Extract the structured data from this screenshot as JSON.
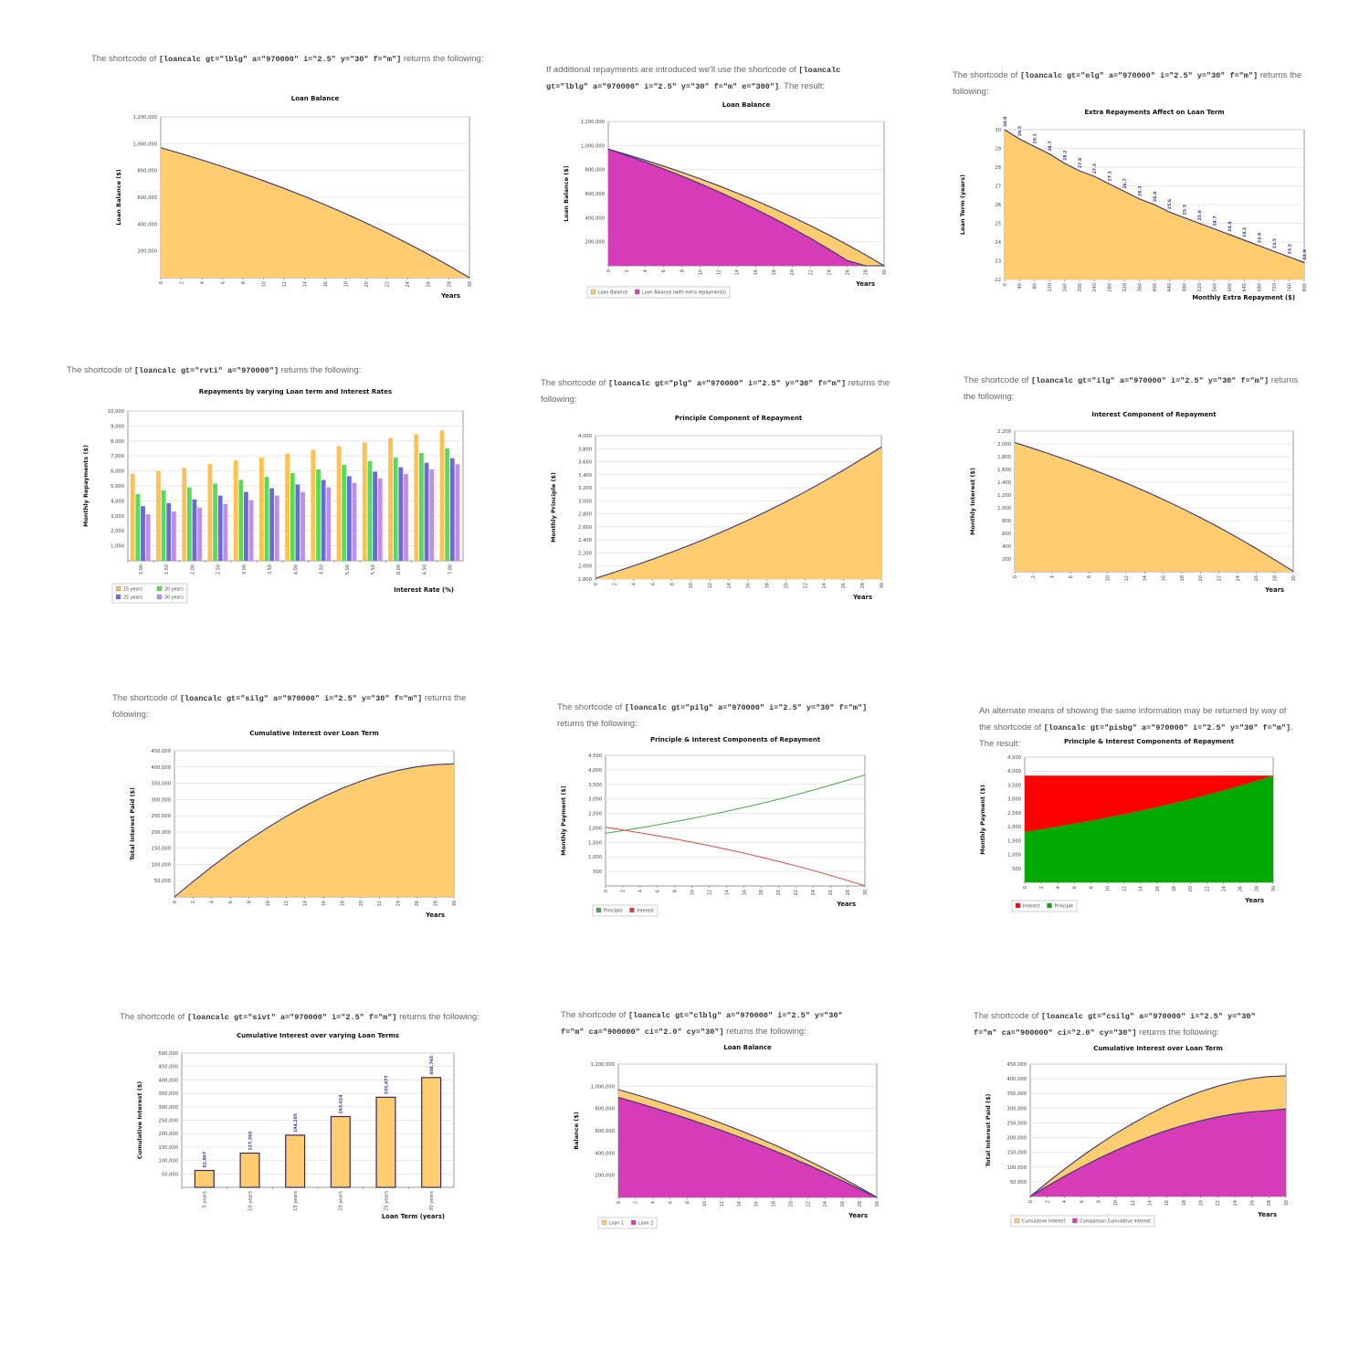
{
  "panels": [
    {
      "before": "The shortcode of ",
      "code": "[loancalc gt=\"lblg\" a=\"970000\" i=\"2.5\" y=\"30\" f=\"m\"]",
      "after": " returns the following:"
    },
    {
      "before": "If additional repayments are introduced we'll use the shortcode of ",
      "code": "[loancalc gt=\"lblg\" a=\"970000\" i=\"2.5\" y=\"30\" f=\"m\" e=\"300\"]",
      "after": ". The result:"
    },
    {
      "before": "The shortcode of ",
      "code": "[loancalc gt=\"elg\" a=\"970000\" i=\"2.5\" y=\"30\" f=\"m\"]",
      "after": " returns the following:"
    },
    {
      "before": "The shortcode of ",
      "code": "[loancalc gt=\"rvti\" a=\"970000\"]",
      "after": " returns the following:"
    },
    {
      "before": "The shortcode of ",
      "code": "[loancalc gt=\"plg\" a=\"970000\" i=\"2.5\" y=\"30\" f=\"m\"]",
      "after": " returns the following:"
    },
    {
      "before": "The shortcode of ",
      "code": "[loancalc gt=\"ilg\" a=\"970000\" i=\"2.5\" y=\"30\" f=\"m\"]",
      "after": " returns the following:"
    },
    {
      "before": "The shortcode of ",
      "code": "[loancalc gt=\"silg\" a=\"970000\" i=\"2.5\" y=\"30\" f=\"m\"]",
      "after": " returns the following:"
    },
    {
      "before": "The shortcode of ",
      "code": "[loancalc gt=\"pilg\" a=\"970000\" i=\"2.5\" y=\"30\" f=\"m\"]",
      "after": " returns the following:"
    },
    {
      "before": "An alternate means of showing the same information may be returned by way of the shortcode of ",
      "code": "[loancalc gt=\"pisbg\" a=\"970000\" i=\"2.5\" y=\"30\" f=\"m\"]",
      "after": ". The result:"
    },
    {
      "before": "The shortcode of ",
      "code": "[loancalc gt=\"sivt\" a=\"970000\" i=\"2.5\" f=\"m\"]",
      "after": " returns the following:"
    },
    {
      "before": "The shortcode of ",
      "code": "[loancalc gt=\"clblg\" a=\"970000\" i=\"2.5\" y=\"30\" f=\"m\" ca=\"900000\" ci=\"2.0\" cy=\"30\"]",
      "after": " returns the following:"
    },
    {
      "before": "The shortcode of ",
      "code": "[loancalc gt=\"csilg\" a=\"970000\" i=\"2.5\" y=\"30\" f=\"m\" ca=\"900000\" ci=\"2.0\" cy=\"30\"]",
      "after": " returns the following:"
    }
  ],
  "colors": {
    "orange": "#FFCC70",
    "magenta": "#D63CB8",
    "line": "#333377",
    "green": "#00AA00",
    "red": "#FF0000",
    "bar15": "#FFC04D",
    "bar20": "#55DD55",
    "bar25": "#6A6AD8",
    "bar30": "#C08CEE",
    "lgreen": "#44AA44",
    "lred": "#DD4444"
  },
  "chart_data": [
    {
      "type": "area",
      "title": "Loan Balance",
      "xlabel": "Years",
      "ylabel": "Loan Balance ($)",
      "ylim": [
        0,
        1200000
      ],
      "yticks": [
        200000,
        400000,
        600000,
        800000,
        1000000,
        1200000
      ],
      "x": [
        0,
        2,
        4,
        6,
        8,
        10,
        12,
        14,
        16,
        18,
        20,
        22,
        24,
        26,
        28,
        30
      ],
      "series": [
        {
          "color": "#FFCC70",
          "values": [
            970000,
            925454,
            878629,
            829413,
            777666,
            723266,
            666075,
            605970,
            542812,
            476384,
            406556,
            333153,
            255985,
            174894,
            89620,
            0
          ]
        }
      ]
    },
    {
      "type": "area",
      "title": "Loan Balance",
      "xlabel": "Years",
      "ylabel": "Loan Balance ($)",
      "ylim": [
        0,
        1200000
      ],
      "yticks": [
        200000,
        400000,
        600000,
        800000,
        1000000,
        1200000
      ],
      "x": [
        0,
        2,
        4,
        6,
        8,
        10,
        12,
        14,
        16,
        18,
        20,
        22,
        24,
        26,
        28,
        30
      ],
      "series": [
        {
          "color": "#FFCC70",
          "values": [
            970000,
            925454,
            878629,
            829413,
            777666,
            723266,
            666075,
            605970,
            542812,
            476384,
            406556,
            333153,
            255985,
            174894,
            89620,
            0
          ]
        },
        {
          "color": "#D63CB8",
          "values": [
            970000,
            918078,
            863501,
            806135,
            745820,
            682413,
            615752,
            545696,
            472081,
            394654,
            313264,
            227708,
            137762,
            43245,
            0,
            0
          ]
        }
      ],
      "legend": [
        {
          "label": "Loan Balance",
          "color": "#FFCC70"
        },
        {
          "label": "Loan Balance (with extra repayments)",
          "color": "#D63CB8"
        }
      ]
    },
    {
      "type": "area",
      "title": "Extra Repayments Affect on Loan Term",
      "xlabel": "Monthly Extra Repayment ($)",
      "ylabel": "Loan Term (years)",
      "ylim": [
        22,
        30
      ],
      "yticks": [
        22,
        23,
        24,
        25,
        26,
        27,
        28,
        29,
        30
      ],
      "x": [
        0,
        40,
        80,
        120,
        160,
        200,
        240,
        280,
        320,
        360,
        400,
        440,
        480,
        520,
        560,
        600,
        640,
        680,
        720,
        760,
        800
      ],
      "series": [
        {
          "color": "#FFCC70",
          "values": [
            30.0,
            29.5,
            29.1,
            28.7,
            28.2,
            27.8,
            27.5,
            27.1,
            26.7,
            26.3,
            26.0,
            25.6,
            25.3,
            25.0,
            24.7,
            24.4,
            24.1,
            23.8,
            23.5,
            23.2,
            22.9
          ]
        }
      ],
      "point_labels": [
        "30.0",
        "29.5",
        "29.1",
        "28.7",
        "28.2",
        "27.8",
        "27.5",
        "27.1",
        "26.7",
        "26.3",
        "26.0",
        "25.6",
        "25.3",
        "25.0",
        "24.7",
        "24.4",
        "24.1",
        "23.8",
        "23.5",
        "23.2",
        "22.9"
      ]
    },
    {
      "type": "grouped-bar",
      "title": "Repayments by varying Loan term and Interest Rates",
      "xlabel": "Interest Rate (%)",
      "ylabel": "Monthly Repayments ($)",
      "ylim": [
        0,
        10000
      ],
      "yticks": [
        1000,
        2000,
        3000,
        4000,
        5000,
        6000,
        7000,
        8000,
        9000,
        10000
      ],
      "categories": [
        "1.00",
        "1.50",
        "2.00",
        "2.50",
        "3.00",
        "3.50",
        "4.00",
        "4.50",
        "5.00",
        "5.50",
        "6.00",
        "6.50",
        "7.00"
      ],
      "series": [
        {
          "color": "#FFC04D",
          "values": [
            5800,
            6000,
            6200,
            6450,
            6700,
            6900,
            7150,
            7400,
            7650,
            7900,
            8200,
            8450,
            8700
          ]
        },
        {
          "color": "#55DD55",
          "values": [
            4450,
            4700,
            4900,
            5150,
            5400,
            5600,
            5850,
            6100,
            6400,
            6650,
            6900,
            7200,
            7500
          ]
        },
        {
          "color": "#6A6AD8",
          "values": [
            3650,
            3850,
            4100,
            4350,
            4600,
            4850,
            5100,
            5400,
            5650,
            5950,
            6250,
            6550,
            6850
          ]
        },
        {
          "color": "#C08CEE",
          "values": [
            3100,
            3300,
            3550,
            3800,
            4050,
            4350,
            4600,
            4900,
            5200,
            5500,
            5800,
            6100,
            6450
          ]
        }
      ],
      "legend": [
        {
          "label": "15 years",
          "color": "#FFC04D"
        },
        {
          "label": "20 years",
          "color": "#55DD55"
        },
        {
          "label": "25 years",
          "color": "#6A6AD8"
        },
        {
          "label": "30 years",
          "color": "#C08CEE"
        }
      ]
    },
    {
      "type": "area",
      "title": "Principle Component of Repayment",
      "xlabel": "Years",
      "ylabel": "Monthly Principle ($)",
      "ylim": [
        1800,
        4000
      ],
      "yticks": [
        1800,
        2000,
        2200,
        2400,
        2600,
        2800,
        3000,
        3200,
        3400,
        3600,
        3800,
        4000
      ],
      "x": [
        0,
        2,
        4,
        6,
        8,
        10,
        12,
        14,
        16,
        18,
        20,
        22,
        24,
        26,
        28,
        30
      ],
      "series": [
        {
          "color": "#FFCC70",
          "values": [
            1812,
            1905,
            2003,
            2105,
            2213,
            2326,
            2445,
            2571,
            2702,
            2841,
            2986,
            3139,
            3300,
            3469,
            3646,
            3825
          ]
        }
      ]
    },
    {
      "type": "area",
      "title": "Interest Component of Repayment",
      "xlabel": "Years",
      "ylabel": "Monthly Interest ($)",
      "ylim": [
        0,
        2200
      ],
      "yticks": [
        200,
        400,
        600,
        800,
        1000,
        1200,
        1400,
        1600,
        1800,
        2000,
        2200
      ],
      "x": [
        0,
        2,
        4,
        6,
        8,
        10,
        12,
        14,
        16,
        18,
        20,
        22,
        24,
        26,
        28,
        30
      ],
      "series": [
        {
          "color": "#FFCC70",
          "values": [
            2021,
            1928,
            1830,
            1728,
            1620,
            1507,
            1388,
            1262,
            1131,
            992,
            847,
            694,
            533,
            364,
            187,
            8
          ]
        }
      ]
    },
    {
      "type": "area",
      "title": "Cumulative Interest over Loan Term",
      "xlabel": "Years",
      "ylabel": "Total Interest Paid ($)",
      "ylim": [
        0,
        450000
      ],
      "yticks": [
        50000,
        100000,
        150000,
        200000,
        250000,
        300000,
        350000,
        400000,
        450000
      ],
      "x": [
        0,
        2,
        4,
        6,
        8,
        10,
        12,
        14,
        16,
        18,
        20,
        22,
        24,
        26,
        28,
        30
      ],
      "series": [
        {
          "color": "#FFCC70",
          "values": [
            0,
            47439,
            92599,
            135367,
            175605,
            213190,
            247984,
            279864,
            308690,
            334247,
            356404,
            374986,
            389803,
            400696,
            407407,
            409772
          ]
        }
      ]
    },
    {
      "type": "line",
      "title": "Principle & Interest Components of Repayment",
      "xlabel": "Years",
      "ylabel": "Monthly Payment ($)",
      "ylim": [
        0,
        4500
      ],
      "yticks": [
        500,
        1000,
        1500,
        2000,
        2500,
        3000,
        3500,
        4000,
        4500
      ],
      "x": [
        0,
        2,
        4,
        6,
        8,
        10,
        12,
        14,
        16,
        18,
        20,
        22,
        24,
        26,
        28,
        30
      ],
      "series": [
        {
          "color": "#44AA44",
          "values": [
            1812,
            1905,
            2003,
            2105,
            2213,
            2326,
            2445,
            2571,
            2702,
            2841,
            2986,
            3139,
            3300,
            3469,
            3646,
            3825
          ]
        },
        {
          "color": "#DD4444",
          "values": [
            2021,
            1928,
            1830,
            1728,
            1620,
            1507,
            1388,
            1262,
            1131,
            992,
            847,
            694,
            533,
            364,
            187,
            8
          ]
        }
      ],
      "legend": [
        {
          "label": "Principle",
          "color": "#44AA44"
        },
        {
          "label": "Interest",
          "color": "#DD4444"
        }
      ]
    },
    {
      "type": "stacked-area",
      "title": "Principle & Interest Components of Repayment",
      "xlabel": "Years",
      "ylabel": "Monthly Payment ($)",
      "ylim": [
        0,
        4500
      ],
      "yticks": [
        500,
        1000,
        1500,
        2000,
        2500,
        3000,
        3500,
        4000,
        4500
      ],
      "x": [
        0,
        2,
        4,
        6,
        8,
        10,
        12,
        14,
        16,
        18,
        20,
        22,
        24,
        26,
        28,
        30
      ],
      "series": [
        {
          "color": "#00AA00",
          "values": [
            1812,
            1905,
            2003,
            2105,
            2213,
            2326,
            2445,
            2571,
            2702,
            2841,
            2986,
            3139,
            3300,
            3469,
            3646,
            3825
          ]
        },
        {
          "color": "#FF0000",
          "values": [
            2021,
            1928,
            1830,
            1728,
            1620,
            1507,
            1388,
            1262,
            1131,
            992,
            847,
            694,
            533,
            364,
            187,
            8
          ]
        }
      ],
      "legend": [
        {
          "label": "Interest",
          "color": "#FF0000"
        },
        {
          "label": "Principle",
          "color": "#00AA00"
        }
      ]
    },
    {
      "type": "bar",
      "title": "Cumulative Interest over varying Loan Terms",
      "xlabel": "Loan Term (years)",
      "ylabel": "Cumulative Interest ($)",
      "ylim": [
        0,
        500000
      ],
      "yticks": [
        50000,
        100000,
        150000,
        200000,
        250000,
        300000,
        350000,
        400000,
        450000,
        500000
      ],
      "categories": [
        "5 years",
        "10 years",
        "15 years",
        "20 years",
        "25 years",
        "30 years"
      ],
      "series": [
        {
          "color": "#FFCC70",
          "values": [
            62867,
            127393,
            194205,
            263614,
            335477,
            408765
          ]
        }
      ],
      "point_labels": [
        "62,867",
        "127,393",
        "194,205",
        "263,614",
        "335,477",
        "408,765"
      ]
    },
    {
      "type": "area",
      "title": "Loan Balance",
      "xlabel": "Years",
      "ylabel": "Balance ($)",
      "ylim": [
        0,
        1200000
      ],
      "yticks": [
        200000,
        400000,
        600000,
        800000,
        1000000,
        1200000
      ],
      "x": [
        0,
        2,
        4,
        6,
        8,
        10,
        12,
        14,
        16,
        18,
        20,
        22,
        24,
        26,
        28,
        30
      ],
      "series": [
        {
          "color": "#FFCC70",
          "values": [
            970000,
            925454,
            878629,
            829413,
            777666,
            723266,
            666075,
            605970,
            542812,
            476384,
            406556,
            333153,
            255985,
            174894,
            89620,
            0
          ]
        },
        {
          "color": "#D63CB8",
          "values": [
            900000,
            855308,
            808609,
            760005,
            709405,
            656746,
            601925,
            544861,
            485461,
            423628,
            359264,
            292268,
            222522,
            149929,
            74363,
            0
          ]
        }
      ],
      "legend": [
        {
          "label": "Loan 1",
          "color": "#FFCC70"
        },
        {
          "label": "Loan 2",
          "color": "#D63CB8"
        }
      ]
    },
    {
      "type": "area",
      "title": "Cumulative Interest over Loan Term",
      "xlabel": "Years",
      "ylabel": "Total Interest Paid ($)",
      "ylim": [
        0,
        450000
      ],
      "yticks": [
        50000,
        100000,
        150000,
        200000,
        250000,
        300000,
        350000,
        400000,
        450000
      ],
      "x": [
        0,
        2,
        4,
        6,
        8,
        10,
        12,
        14,
        16,
        18,
        20,
        22,
        24,
        26,
        28,
        30
      ],
      "series": [
        {
          "color": "#FFCC70",
          "values": [
            0,
            47439,
            92599,
            135367,
            175605,
            213190,
            247984,
            279864,
            308690,
            334247,
            356404,
            374986,
            389803,
            400696,
            407407,
            409772
          ]
        },
        {
          "color": "#D63CB8",
          "values": [
            0,
            35146,
            68286,
            99520,
            128759,
            155938,
            180955,
            203730,
            224168,
            242174,
            257648,
            270490,
            280583,
            287828,
            292101,
            297576
          ]
        }
      ],
      "legend": [
        {
          "label": "Cumulative Interest",
          "color": "#FFCC70"
        },
        {
          "label": "Comparison Cumulative Interest",
          "color": "#D63CB8"
        }
      ]
    }
  ]
}
